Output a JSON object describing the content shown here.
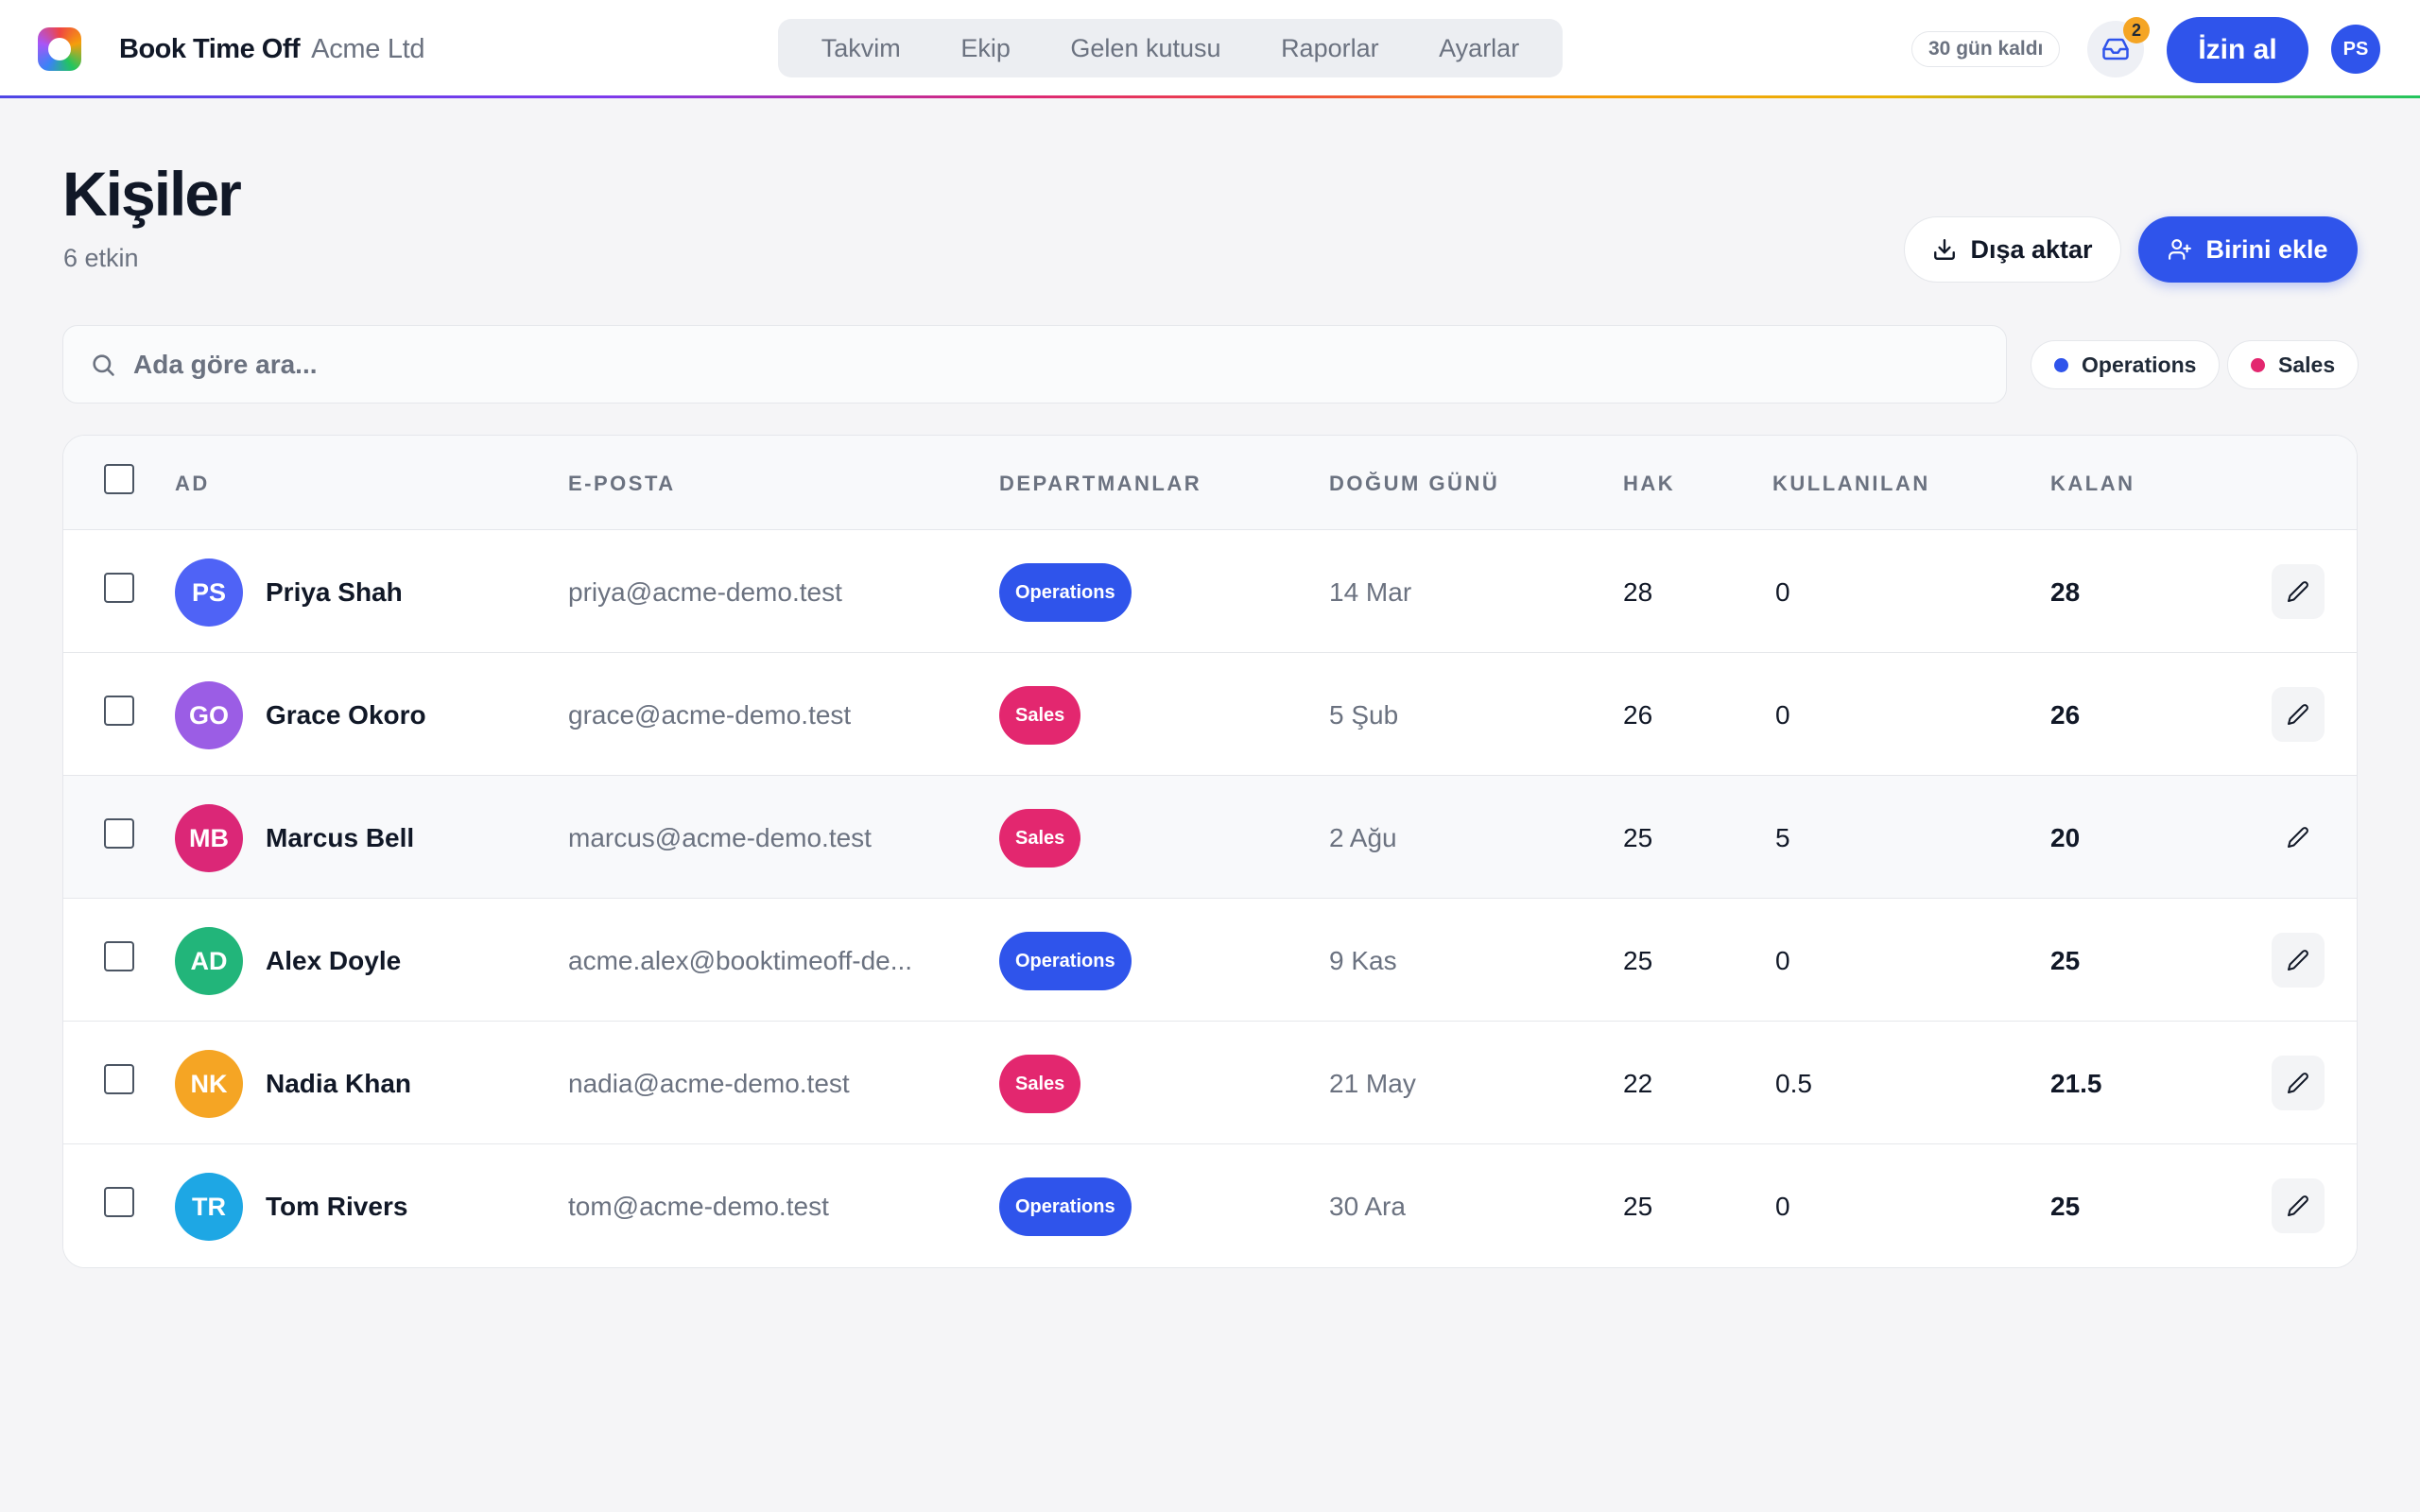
{
  "app": {
    "name": "Book Time Off",
    "org": "Acme Ltd"
  },
  "nav": {
    "items": [
      "Takvim",
      "Ekip",
      "Gelen kutusu",
      "Raporlar",
      "Ayarlar"
    ]
  },
  "header": {
    "trial": "30 gün kaldı",
    "inbox_count": "2",
    "leave_label": "İzin al",
    "user_initials": "PS"
  },
  "page": {
    "title": "Kişiler",
    "subtitle": "6 etkin",
    "export_label": "Dışa aktar",
    "add_label": "Birini ekle"
  },
  "search": {
    "placeholder": "Ada göre ara..."
  },
  "filters": [
    {
      "label": "Operations",
      "color": "#2f54eb"
    },
    {
      "label": "Sales",
      "color": "#e3276f"
    }
  ],
  "table": {
    "headers": {
      "name": "AD",
      "email": "E-POSTA",
      "departments": "DEPARTMANLAR",
      "birthday": "DOĞUM GÜNÜ",
      "entitlement": "HAK",
      "used": "KULLANILAN",
      "remaining": "KALAN"
    },
    "rows": [
      {
        "initials": "PS",
        "avatar_color": "#4f63f6",
        "name": "Priya Shah",
        "email": "priya@acme-demo.test",
        "dept": "Operations",
        "birthday": "14 Mar",
        "entitlement": "28",
        "used": "0",
        "remaining": "28"
      },
      {
        "initials": "GO",
        "avatar_color": "#9b5de5",
        "name": "Grace Okoro",
        "email": "grace@acme-demo.test",
        "dept": "Sales",
        "birthday": "5 Şub",
        "entitlement": "26",
        "used": "0",
        "remaining": "26"
      },
      {
        "initials": "MB",
        "avatar_color": "#db2777",
        "name": "Marcus Bell",
        "email": "marcus@acme-demo.test",
        "dept": "Sales",
        "birthday": "2 Ağu",
        "entitlement": "25",
        "used": "5",
        "remaining": "20"
      },
      {
        "initials": "AD",
        "avatar_color": "#22b57a",
        "name": "Alex Doyle",
        "email": "acme.alex@booktimeoff-de...",
        "dept": "Operations",
        "birthday": "9 Kas",
        "entitlement": "25",
        "used": "0",
        "remaining": "25"
      },
      {
        "initials": "NK",
        "avatar_color": "#f5a524",
        "name": "Nadia Khan",
        "email": "nadia@acme-demo.test",
        "dept": "Sales",
        "birthday": "21 May",
        "entitlement": "22",
        "used": "0.5",
        "remaining": "21.5"
      },
      {
        "initials": "TR",
        "avatar_color": "#1ea7e4",
        "name": "Tom Rivers",
        "email": "tom@acme-demo.test",
        "dept": "Operations",
        "birthday": "30 Ara",
        "entitlement": "25",
        "used": "0",
        "remaining": "25"
      }
    ]
  }
}
